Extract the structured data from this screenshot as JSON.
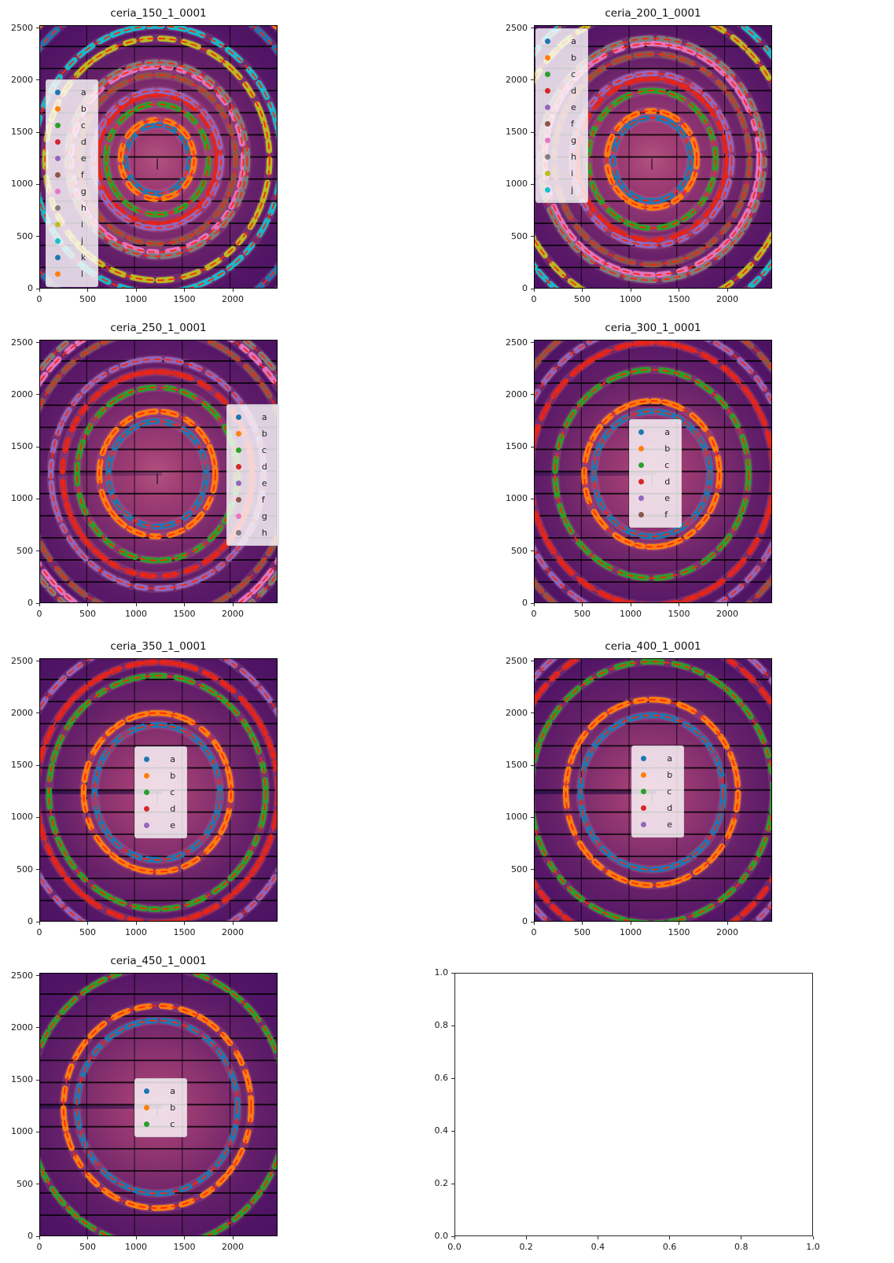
{
  "figure": {
    "background": "#ffffff"
  },
  "palette": {
    "blue": "#1f77b4",
    "orange": "#ff7f0e",
    "green": "#2ca02c",
    "red": "#d62728",
    "purple": "#9467bd",
    "brown": "#8c564b",
    "pink": "#e377c2",
    "gray": "#7f7f7f",
    "olive": "#bcbd22",
    "cyan": "#17becf"
  },
  "style": {
    "fit_circle_color": "#ff2400",
    "module_gap_color": "#000000",
    "legend_bg": "rgba(255,255,255,0.8)",
    "image_gradient": [
      "#b0537f",
      "#a03d74",
      "#87316f",
      "#652069",
      "#521566",
      "#471060"
    ],
    "faint_band_color": "rgba(244,152,168,0.16)",
    "streak_color": "rgba(16,8,58,0.85)",
    "module_gaps_x": [
      490,
      984,
      1478,
      1972
    ],
    "module_gaps_y": [
      203,
      415,
      627,
      839,
      1051,
      1263,
      1475,
      1687,
      1899,
      2111,
      2323
    ]
  },
  "chart_data": [
    {
      "type": "heatmap",
      "title": "ceria_150_1_0001",
      "grid_pos": [
        0,
        0
      ],
      "x_range": [
        0,
        2463
      ],
      "y_range": [
        0,
        2527
      ],
      "grid": true,
      "x_tick_labels": [
        "0",
        "500",
        "1000",
        "1500",
        "2000"
      ],
      "y_tick_labels": [
        "0",
        "500",
        "1000",
        "1500",
        "2000",
        "2500"
      ],
      "center": [
        1220,
        1240
      ],
      "legend_labels": [
        "a",
        "b",
        "c",
        "d",
        "e",
        "f",
        "g",
        "h",
        "i",
        "j",
        "k",
        "l"
      ],
      "ring_colors": [
        "blue",
        "orange",
        "green",
        "red",
        "purple",
        "brown",
        "pink",
        "gray",
        "olive",
        "cyan",
        "blue",
        "orange"
      ],
      "ring_radii": [
        330,
        380,
        530,
        620,
        660,
        810,
        890,
        930,
        1160,
        1280,
        1620,
        1770
      ],
      "legend_pos": {
        "x": 0.026,
        "y": 0.205
      },
      "streak_opacity": 0.15
    },
    {
      "type": "heatmap",
      "title": "ceria_200_1_0001",
      "grid_pos": [
        0,
        1
      ],
      "x_range": [
        0,
        2463
      ],
      "y_range": [
        0,
        2527
      ],
      "grid": true,
      "x_tick_labels": [
        "0",
        "500",
        "1000",
        "1500",
        "2000"
      ],
      "y_tick_labels": [
        "0",
        "500",
        "1000",
        "1500",
        "2000",
        "2500"
      ],
      "center": [
        1220,
        1240
      ],
      "legend_labels": [
        "a",
        "b",
        "c",
        "d",
        "e",
        "f",
        "g",
        "h",
        "i",
        "j"
      ],
      "ring_colors": [
        "blue",
        "orange",
        "green",
        "red",
        "purple",
        "brown",
        "pink",
        "gray",
        "olive",
        "cyan"
      ],
      "ring_radii": [
        400,
        465,
        660,
        775,
        825,
        1010,
        1110,
        1160,
        1440,
        1590
      ],
      "legend_pos": {
        "x": 0.007,
        "y": 0.012
      },
      "streak_opacity": 0.2
    },
    {
      "type": "heatmap",
      "title": "ceria_250_1_0001",
      "grid_pos": [
        1,
        0
      ],
      "x_range": [
        0,
        2463
      ],
      "y_range": [
        0,
        2527
      ],
      "grid": true,
      "x_tick_labels": [
        "0",
        "500",
        "1000",
        "1500",
        "2000"
      ],
      "y_tick_labels": [
        "0",
        "500",
        "1000",
        "1500",
        "2000",
        "2500"
      ],
      "center": [
        1220,
        1240
      ],
      "legend_labels": [
        "a",
        "b",
        "c",
        "d",
        "e",
        "f",
        "g",
        "h"
      ],
      "ring_colors": [
        "blue",
        "orange",
        "green",
        "red",
        "purple",
        "brown",
        "pink",
        "gray"
      ],
      "ring_radii": [
        505,
        600,
        830,
        980,
        1100,
        1380,
        1500,
        1570
      ],
      "legend_pos": {
        "x": 0.785,
        "y": 0.245
      },
      "streak_opacity": 0.3
    },
    {
      "type": "heatmap",
      "title": "ceria_300_1_0001",
      "grid_pos": [
        1,
        1
      ],
      "x_range": [
        0,
        2463
      ],
      "y_range": [
        0,
        2527
      ],
      "grid": true,
      "x_tick_labels": [
        "0",
        "500",
        "1000",
        "1500",
        "2000"
      ],
      "y_tick_labels": [
        "0",
        "500",
        "1000",
        "1500",
        "2000",
        "2500"
      ],
      "center": [
        1220,
        1240
      ],
      "legend_labels": [
        "a",
        "b",
        "c",
        "d",
        "e",
        "f"
      ],
      "ring_colors": [
        "blue",
        "orange",
        "green",
        "red",
        "purple",
        "brown"
      ],
      "ring_radii": [
        600,
        700,
        1000,
        1260,
        1420,
        1600
      ],
      "legend_pos": {
        "x": 0.4,
        "y": 0.3
      },
      "streak_opacity": 0.4
    },
    {
      "type": "heatmap",
      "title": "ceria_350_1_0001",
      "grid_pos": [
        2,
        0
      ],
      "x_range": [
        0,
        2463
      ],
      "y_range": [
        0,
        2527
      ],
      "grid": true,
      "x_tick_labels": [
        "0",
        "500",
        "1000",
        "1500",
        "2000"
      ],
      "y_tick_labels": [
        "0",
        "500",
        "1000",
        "1500",
        "2000",
        "2500"
      ],
      "center": [
        1220,
        1240
      ],
      "legend_labels": [
        "a",
        "b",
        "c",
        "d",
        "e"
      ],
      "ring_colors": [
        "blue",
        "orange",
        "green",
        "red",
        "purple"
      ],
      "ring_radii": [
        648,
        762,
        1120,
        1250,
        1460
      ],
      "legend_pos": {
        "x": 0.4,
        "y": 0.335
      },
      "streak_opacity": 0.65
    },
    {
      "type": "heatmap",
      "title": "ceria_400_1_0001",
      "grid_pos": [
        2,
        1
      ],
      "x_range": [
        0,
        2463
      ],
      "y_range": [
        0,
        2527
      ],
      "grid": true,
      "x_tick_labels": [
        "0",
        "500",
        "1000",
        "1500",
        "2000"
      ],
      "y_tick_labels": [
        "0",
        "500",
        "1000",
        "1500",
        "2000",
        "2500"
      ],
      "center": [
        1220,
        1240
      ],
      "legend_labels": [
        "a",
        "b",
        "c",
        "d",
        "e"
      ],
      "ring_colors": [
        "blue",
        "orange",
        "green",
        "red",
        "purple"
      ],
      "ring_radii": [
        740,
        890,
        1255,
        1500,
        1640
      ],
      "legend_pos": {
        "x": 0.41,
        "y": 0.33
      },
      "streak_opacity": 0.65
    },
    {
      "type": "heatmap",
      "title": "ceria_450_1_0001",
      "grid_pos": [
        3,
        0
      ],
      "x_range": [
        0,
        2463
      ],
      "y_range": [
        0,
        2527
      ],
      "grid": true,
      "x_tick_labels": [
        "0",
        "500",
        "1000",
        "1500",
        "2000"
      ],
      "y_tick_labels": [
        "0",
        "500",
        "1000",
        "1500",
        "2000",
        "2500"
      ],
      "center": [
        1220,
        1240
      ],
      "legend_labels": [
        "a",
        "b",
        "c"
      ],
      "ring_colors": [
        "blue",
        "orange",
        "green"
      ],
      "ring_radii": [
        830,
        970,
        1340
      ],
      "legend_pos": {
        "x": 0.4,
        "y": 0.4
      },
      "streak_opacity": 0.55
    },
    {
      "type": "empty",
      "title": "",
      "grid_pos": [
        3,
        1
      ],
      "x_range": [
        0,
        1
      ],
      "y_range": [
        0,
        1
      ],
      "grid": false,
      "x_tick_labels": [
        "0.0",
        "0.2",
        "0.4",
        "0.6",
        "0.8",
        "1.0"
      ],
      "y_tick_labels": [
        "0.0",
        "0.2",
        "0.4",
        "0.6",
        "0.8",
        "1.0"
      ],
      "legend_labels": [],
      "ring_colors": [],
      "ring_radii": []
    }
  ]
}
